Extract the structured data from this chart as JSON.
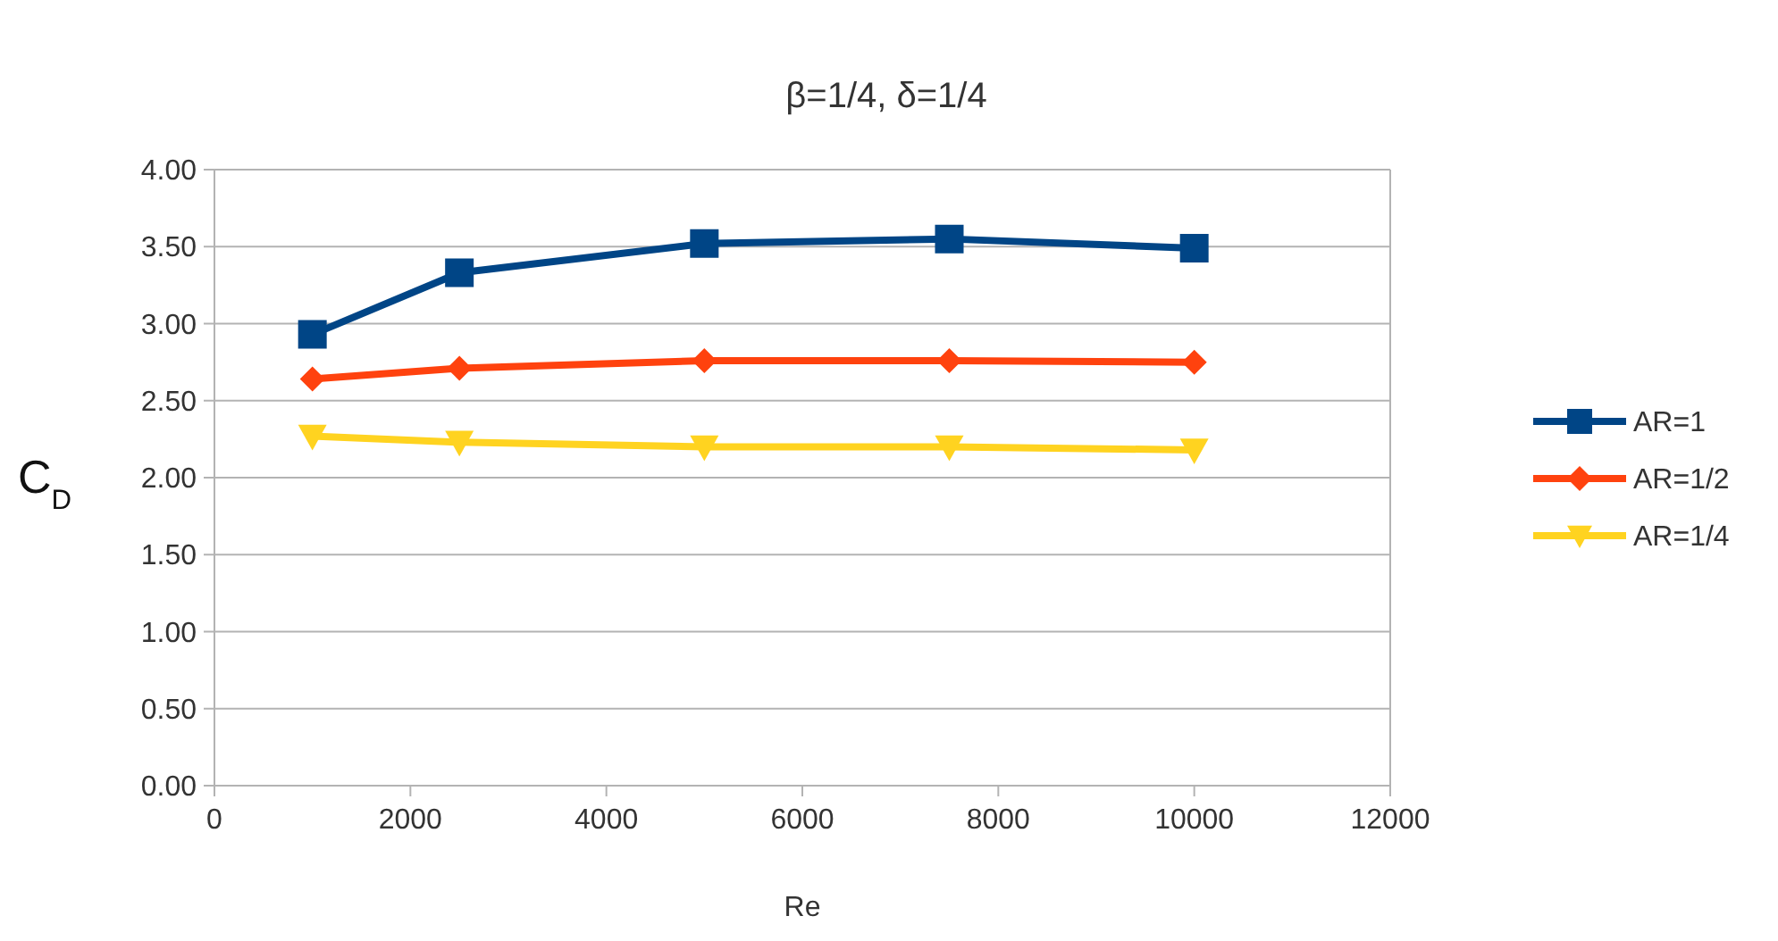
{
  "chart_data": {
    "type": "line",
    "title": "β=1/4, δ=1/4",
    "xlabel": "Re",
    "ylabel": "C$_{D}$",
    "x": [
      1000,
      2500,
      5000,
      7500,
      10000
    ],
    "series": [
      {
        "name": "AR=1",
        "color": "#004586",
        "marker": "square",
        "values": [
          2.93,
          3.33,
          3.52,
          3.55,
          3.49
        ]
      },
      {
        "name": "AR=1/2",
        "color": "#ff420e",
        "marker": "diamond",
        "values": [
          2.64,
          2.71,
          2.76,
          2.76,
          2.75
        ]
      },
      {
        "name": "AR=1/4",
        "color": "#ffd320",
        "marker": "triangle",
        "values": [
          2.27,
          2.23,
          2.2,
          2.2,
          2.18
        ]
      }
    ],
    "xlim": [
      0,
      12000
    ],
    "xticks": [
      0,
      2000,
      4000,
      6000,
      8000,
      10000,
      12000
    ],
    "ylim": [
      0,
      4
    ],
    "yticks": [
      {
        "value": 0,
        "label": "0.00"
      },
      {
        "value": 0.5,
        "label": "0.50"
      },
      {
        "value": 1,
        "label": "1.00"
      },
      {
        "value": 1.5,
        "label": "1.50"
      },
      {
        "value": 2,
        "label": "2.00"
      },
      {
        "value": 2.5,
        "label": "2.50"
      },
      {
        "value": 3,
        "label": "3.00"
      },
      {
        "value": 3.5,
        "label": "3.50"
      },
      {
        "value": 4,
        "label": "4.00"
      }
    ],
    "grid": "y",
    "legend": "right",
    "line_style": "solid"
  }
}
